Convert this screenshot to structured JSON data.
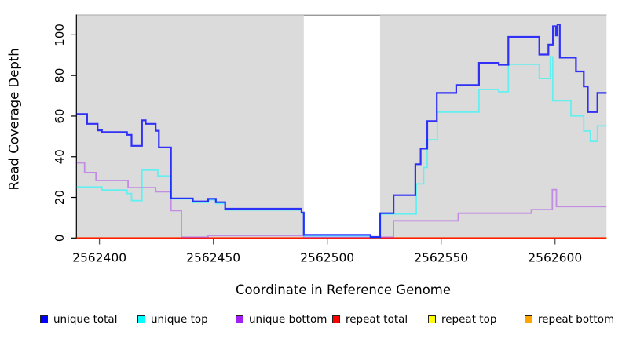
{
  "figure": {
    "y_axis_label": "Read Coverage Depth",
    "x_axis_label": "Coordinate in Reference Genome"
  },
  "legend": {
    "items": [
      {
        "label": "unique total",
        "color": "#0000FF"
      },
      {
        "label": "unique top",
        "color": "#00FFFF"
      },
      {
        "label": "unique bottom",
        "color": "#A020F0"
      },
      {
        "label": "repeat total",
        "color": "#FF0000"
      },
      {
        "label": "repeat top",
        "color": "#FFFF00"
      },
      {
        "label": "repeat bottom",
        "color": "#FFA500"
      }
    ]
  },
  "chart_data": {
    "type": "line",
    "line_style": "step",
    "title": "",
    "xlabel": "Coordinate in Reference Genome",
    "ylabel": "Read Coverage Depth",
    "xlim": [
      2562389.9,
      2562622.6
    ],
    "ylim": [
      0,
      110
    ],
    "x_ticks": [
      2562400,
      2562450,
      2562500,
      2562550,
      2562600
    ],
    "y_ticks": [
      0,
      20,
      40,
      60,
      80,
      100
    ],
    "grid": false,
    "legend_position": "bottom",
    "panel_color": "#DBDBDB",
    "highlight_band": {
      "x_start": 2562489.7,
      "x_end": 2562523.2,
      "color": "#FFFFFF"
    },
    "series": [
      {
        "id": "unique-total",
        "name": "unique total",
        "legend_color": "#0000FF",
        "line_color": "rgba(0,0,255,0.78)",
        "line_width": 2.2,
        "steps": [
          [
            2562390.0,
            61.0
          ],
          [
            2562394.6,
            56.2
          ],
          [
            2562399.2,
            53.0
          ],
          [
            2562401.1,
            52.1
          ],
          [
            2562412.1,
            50.8
          ],
          [
            2562414.1,
            45.4
          ],
          [
            2562418.7,
            57.9
          ],
          [
            2562420.3,
            56.2
          ],
          [
            2562424.7,
            52.8
          ],
          [
            2562426.1,
            44.6
          ],
          [
            2562431.4,
            19.5
          ],
          [
            2562441.0,
            18.0
          ],
          [
            2562447.7,
            19.3
          ],
          [
            2562451.1,
            17.6
          ],
          [
            2562455.2,
            14.4
          ],
          [
            2562488.7,
            12.5
          ],
          [
            2562489.7,
            1.5
          ],
          [
            2562519.0,
            0.5
          ],
          [
            2562523.2,
            12.2
          ],
          [
            2562529.1,
            21.1
          ],
          [
            2562538.7,
            36.3
          ],
          [
            2562541.0,
            44.0
          ],
          [
            2562543.9,
            57.5
          ],
          [
            2562548.1,
            71.4
          ],
          [
            2562556.6,
            75.3
          ],
          [
            2562566.6,
            86.2
          ],
          [
            2562575.3,
            85.3
          ],
          [
            2562579.5,
            99.0
          ],
          [
            2562593.1,
            90.3
          ],
          [
            2562597.1,
            95.2
          ],
          [
            2562599.1,
            104.2
          ],
          [
            2562600.4,
            99.7
          ],
          [
            2562601.1,
            105.1
          ],
          [
            2562602.1,
            88.8
          ],
          [
            2562609.2,
            82.0
          ],
          [
            2562612.6,
            74.6
          ],
          [
            2562614.4,
            62.0
          ],
          [
            2562618.6,
            71.4
          ]
        ]
      },
      {
        "id": "unique-top",
        "name": "unique top",
        "legend_color": "#00FFFF",
        "line_color": "rgba(0,255,255,0.55)",
        "line_width": 1.8,
        "steps": [
          [
            2562390.0,
            25.1
          ],
          [
            2562401.1,
            23.6
          ],
          [
            2562412.1,
            21.9
          ],
          [
            2562414.1,
            18.4
          ],
          [
            2562418.7,
            33.4
          ],
          [
            2562425.6,
            30.5
          ],
          [
            2562431.4,
            19.3
          ],
          [
            2562441.0,
            17.5
          ],
          [
            2562447.7,
            18.8
          ],
          [
            2562451.1,
            17.0
          ],
          [
            2562455.2,
            13.8
          ],
          [
            2562488.7,
            12.0
          ],
          [
            2562489.7,
            1.0
          ],
          [
            2562519.0,
            0.3
          ],
          [
            2562523.2,
            11.8
          ],
          [
            2562539.1,
            26.6
          ],
          [
            2562542.3,
            34.7
          ],
          [
            2562543.9,
            48.3
          ],
          [
            2562548.3,
            62.0
          ],
          [
            2562566.6,
            73.1
          ],
          [
            2562575.3,
            72.0
          ],
          [
            2562579.5,
            85.5
          ],
          [
            2562593.1,
            78.5
          ],
          [
            2562597.9,
            89.2
          ],
          [
            2562599.0,
            67.6
          ],
          [
            2562607.0,
            60.1
          ],
          [
            2562612.6,
            52.7
          ],
          [
            2562615.5,
            47.6
          ],
          [
            2562618.6,
            55.2
          ]
        ]
      },
      {
        "id": "unique-bottom",
        "name": "unique bottom",
        "legend_color": "#A020F0",
        "line_color": "rgba(160,32,240,0.42)",
        "line_width": 1.8,
        "steps": [
          [
            2562390.0,
            37.0
          ],
          [
            2562393.5,
            32.2
          ],
          [
            2562398.5,
            28.3
          ],
          [
            2562412.6,
            24.8
          ],
          [
            2562424.7,
            22.8
          ],
          [
            2562431.4,
            13.5
          ],
          [
            2562436.0,
            0.4
          ],
          [
            2562447.7,
            1.2
          ],
          [
            2562489.7,
            0.4
          ],
          [
            2562529.1,
            8.5
          ],
          [
            2562557.5,
            12.2
          ],
          [
            2562589.6,
            14.0
          ],
          [
            2562598.8,
            23.8
          ],
          [
            2562600.6,
            15.5
          ]
        ]
      },
      {
        "id": "repeat-total",
        "name": "repeat total",
        "legend_color": "#FF0000",
        "line_color": "rgba(255,0,0,0.9)",
        "line_width": 1.6,
        "steps": [
          [
            2562390.0,
            0.0
          ]
        ]
      },
      {
        "id": "repeat-top",
        "name": "repeat top",
        "legend_color": "#FFFF00",
        "line_color": "rgba(255,255,0,0.9)",
        "line_width": 1.6,
        "steps": [
          [
            2562390.0,
            0.0
          ]
        ]
      },
      {
        "id": "repeat-bottom",
        "name": "repeat bottom",
        "legend_color": "#FFA500",
        "line_color": "#FFA500",
        "line_width": 1.8,
        "steps": [
          [
            2562390.0,
            0.0
          ]
        ]
      }
    ]
  }
}
